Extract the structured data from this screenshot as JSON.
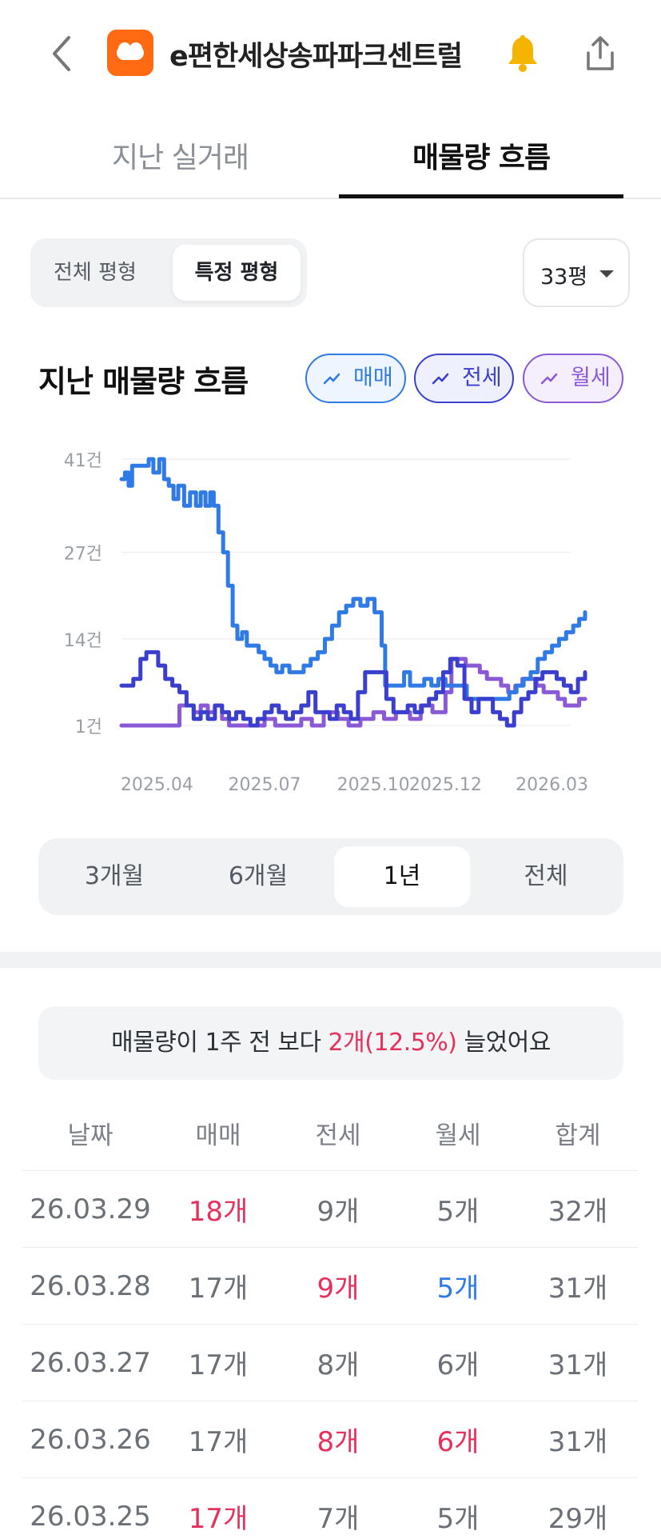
{
  "header": {
    "title": "e편한세상송파파크센트럴",
    "colors": {
      "brand": "#ff6a13",
      "bell": "#f5b400"
    }
  },
  "tabs": [
    {
      "label": "지난 실거래",
      "active": false
    },
    {
      "label": "매물량 흐름",
      "active": true
    }
  ],
  "filter": {
    "options": [
      "전체 평형",
      "특정 평형"
    ],
    "selected": "특정 평형",
    "size_select": "33평"
  },
  "chart_section": {
    "title": "지난 매물량 흐름",
    "legend": [
      {
        "label": "매매",
        "color": "#2f7ae5"
      },
      {
        "label": "전세",
        "color": "#3b3fce"
      },
      {
        "label": "월세",
        "color": "#8a5ad6"
      }
    ]
  },
  "chart_data": {
    "type": "line",
    "title": "",
    "xlabel": "",
    "ylabel": "",
    "y_ticks": [
      "41건",
      "27건",
      "14건",
      "1건"
    ],
    "y_tick_values": [
      41,
      27,
      14,
      1
    ],
    "ylim": [
      1,
      41
    ],
    "x_ticks": [
      "2025.04",
      "2025.07",
      "2025.10",
      "2025.12",
      "2026.03"
    ],
    "x_tick_values": [
      "2025-04-01",
      "2025-07-01",
      "2025-10-01",
      "2025-12-01",
      "2026-03-01"
    ],
    "xlim": [
      "2025-03-02",
      "2026-03-29"
    ],
    "grid": true,
    "legend": "top-right",
    "series": [
      {
        "name": "매매",
        "color": "#2f7ae5",
        "points": [
          [
            "2025-03-02",
            38
          ],
          [
            "2025-03-05",
            39
          ],
          [
            "2025-03-08",
            37
          ],
          [
            "2025-03-11",
            40
          ],
          [
            "2025-03-15",
            40
          ],
          [
            "2025-03-20",
            40
          ],
          [
            "2025-03-25",
            41
          ],
          [
            "2025-03-29",
            39
          ],
          [
            "2025-04-03",
            41
          ],
          [
            "2025-04-07",
            38
          ],
          [
            "2025-04-11",
            37
          ],
          [
            "2025-04-15",
            35
          ],
          [
            "2025-04-19",
            37
          ],
          [
            "2025-04-24",
            34
          ],
          [
            "2025-04-29",
            36
          ],
          [
            "2025-05-04",
            34
          ],
          [
            "2025-05-08",
            36
          ],
          [
            "2025-05-12",
            34
          ],
          [
            "2025-05-16",
            36
          ],
          [
            "2025-05-19",
            34
          ],
          [
            "2025-05-23",
            30
          ],
          [
            "2025-05-27",
            27
          ],
          [
            "2025-05-31",
            22
          ],
          [
            "2025-06-04",
            16
          ],
          [
            "2025-06-08",
            14
          ],
          [
            "2025-06-12",
            15
          ],
          [
            "2025-06-16",
            13
          ],
          [
            "2025-06-21",
            13
          ],
          [
            "2025-06-26",
            12
          ],
          [
            "2025-07-01",
            11
          ],
          [
            "2025-07-06",
            10
          ],
          [
            "2025-07-11",
            9
          ],
          [
            "2025-07-16",
            10
          ],
          [
            "2025-07-22",
            9
          ],
          [
            "2025-07-28",
            9
          ],
          [
            "2025-08-03",
            10
          ],
          [
            "2025-08-09",
            11
          ],
          [
            "2025-08-15",
            12
          ],
          [
            "2025-08-21",
            14
          ],
          [
            "2025-08-27",
            16
          ],
          [
            "2025-09-02",
            18
          ],
          [
            "2025-09-08",
            19
          ],
          [
            "2025-09-14",
            20
          ],
          [
            "2025-09-20",
            19
          ],
          [
            "2025-09-26",
            20
          ],
          [
            "2025-10-02",
            18
          ],
          [
            "2025-10-08",
            13
          ],
          [
            "2025-10-11",
            7
          ],
          [
            "2025-10-17",
            7
          ],
          [
            "2025-10-23",
            7
          ],
          [
            "2025-10-27",
            9
          ],
          [
            "2025-11-01",
            7
          ],
          [
            "2025-11-07",
            7
          ],
          [
            "2025-11-13",
            8
          ],
          [
            "2025-11-19",
            7
          ],
          [
            "2025-11-25",
            8
          ],
          [
            "2025-12-01",
            7
          ],
          [
            "2025-12-07",
            7
          ],
          [
            "2025-12-13",
            7
          ],
          [
            "2025-12-19",
            5
          ],
          [
            "2025-12-25",
            5
          ],
          [
            "2025-12-31",
            5
          ],
          [
            "2026-01-06",
            5
          ],
          [
            "2026-01-12",
            5
          ],
          [
            "2026-01-18",
            5
          ],
          [
            "2026-01-24",
            6
          ],
          [
            "2026-01-30",
            7
          ],
          [
            "2026-02-05",
            8
          ],
          [
            "2026-02-11",
            9
          ],
          [
            "2026-02-17",
            11
          ],
          [
            "2026-02-23",
            12
          ],
          [
            "2026-03-01",
            13
          ],
          [
            "2026-03-07",
            14
          ],
          [
            "2026-03-13",
            15
          ],
          [
            "2026-03-19",
            16
          ],
          [
            "2026-03-24",
            17
          ],
          [
            "2026-03-29",
            18
          ]
        ]
      },
      {
        "name": "전세",
        "color": "#3b3fce",
        "points": [
          [
            "2025-03-02",
            7
          ],
          [
            "2025-03-07",
            7
          ],
          [
            "2025-03-12",
            8
          ],
          [
            "2025-03-18",
            11
          ],
          [
            "2025-03-23",
            12
          ],
          [
            "2025-03-29",
            12
          ],
          [
            "2025-04-02",
            10
          ],
          [
            "2025-04-08",
            8
          ],
          [
            "2025-04-14",
            7
          ],
          [
            "2025-04-20",
            6
          ],
          [
            "2025-04-26",
            4
          ],
          [
            "2025-05-02",
            2
          ],
          [
            "2025-05-08",
            3
          ],
          [
            "2025-05-14",
            2
          ],
          [
            "2025-05-20",
            4
          ],
          [
            "2025-05-26",
            3
          ],
          [
            "2025-06-01",
            2
          ],
          [
            "2025-06-07",
            3
          ],
          [
            "2025-06-13",
            2
          ],
          [
            "2025-06-19",
            1
          ],
          [
            "2025-06-25",
            2
          ],
          [
            "2025-07-01",
            3
          ],
          [
            "2025-07-07",
            4
          ],
          [
            "2025-07-13",
            3
          ],
          [
            "2025-07-19",
            2
          ],
          [
            "2025-07-25",
            3
          ],
          [
            "2025-08-01",
            4
          ],
          [
            "2025-08-07",
            6
          ],
          [
            "2025-08-13",
            3
          ],
          [
            "2025-08-19",
            3
          ],
          [
            "2025-08-25",
            2
          ],
          [
            "2025-08-31",
            4
          ],
          [
            "2025-09-06",
            3
          ],
          [
            "2025-09-12",
            2
          ],
          [
            "2025-09-18",
            6
          ],
          [
            "2025-09-24",
            9
          ],
          [
            "2025-09-30",
            9
          ],
          [
            "2025-10-06",
            9
          ],
          [
            "2025-10-12",
            5
          ],
          [
            "2025-10-18",
            3
          ],
          [
            "2025-10-24",
            3
          ],
          [
            "2025-10-30",
            4
          ],
          [
            "2025-11-05",
            3
          ],
          [
            "2025-11-11",
            4
          ],
          [
            "2025-11-17",
            5
          ],
          [
            "2025-11-23",
            6
          ],
          [
            "2025-11-29",
            9
          ],
          [
            "2025-12-05",
            11
          ],
          [
            "2025-12-11",
            10
          ],
          [
            "2025-12-17",
            5
          ],
          [
            "2025-12-23",
            3
          ],
          [
            "2025-12-29",
            5
          ],
          [
            "2026-01-04",
            5
          ],
          [
            "2026-01-10",
            3
          ],
          [
            "2026-01-16",
            2
          ],
          [
            "2026-01-22",
            1
          ],
          [
            "2026-01-28",
            3
          ],
          [
            "2026-02-03",
            5
          ],
          [
            "2026-02-09",
            6
          ],
          [
            "2026-02-15",
            8
          ],
          [
            "2026-02-21",
            9
          ],
          [
            "2026-02-27",
            9
          ],
          [
            "2026-03-05",
            8
          ],
          [
            "2026-03-11",
            7
          ],
          [
            "2026-03-17",
            6
          ],
          [
            "2026-03-23",
            8
          ],
          [
            "2026-03-29",
            9
          ]
        ]
      },
      {
        "name": "월세",
        "color": "#8a5ad6",
        "points": [
          [
            "2025-03-02",
            1
          ],
          [
            "2025-03-20",
            1
          ],
          [
            "2025-04-08",
            1
          ],
          [
            "2025-04-18",
            1
          ],
          [
            "2025-04-20",
            4
          ],
          [
            "2025-04-26",
            4
          ],
          [
            "2025-05-02",
            3
          ],
          [
            "2025-05-08",
            4
          ],
          [
            "2025-05-14",
            3
          ],
          [
            "2025-05-20",
            4
          ],
          [
            "2025-05-26",
            2
          ],
          [
            "2025-06-01",
            1
          ],
          [
            "2025-06-10",
            1
          ],
          [
            "2025-06-20",
            1
          ],
          [
            "2025-07-01",
            2
          ],
          [
            "2025-07-10",
            1
          ],
          [
            "2025-07-20",
            1
          ],
          [
            "2025-08-01",
            2
          ],
          [
            "2025-08-10",
            1
          ],
          [
            "2025-08-20",
            3
          ],
          [
            "2025-09-01",
            2
          ],
          [
            "2025-09-10",
            1
          ],
          [
            "2025-09-20",
            2
          ],
          [
            "2025-10-01",
            3
          ],
          [
            "2025-10-10",
            2
          ],
          [
            "2025-10-20",
            3
          ],
          [
            "2025-11-01",
            2
          ],
          [
            "2025-11-10",
            4
          ],
          [
            "2025-11-20",
            3
          ],
          [
            "2025-12-01",
            6
          ],
          [
            "2025-12-06",
            11
          ],
          [
            "2025-12-12",
            11
          ],
          [
            "2025-12-18",
            10
          ],
          [
            "2025-12-24",
            10
          ],
          [
            "2025-12-30",
            9
          ],
          [
            "2026-01-05",
            8
          ],
          [
            "2026-01-11",
            8
          ],
          [
            "2026-01-17",
            7
          ],
          [
            "2026-01-23",
            6
          ],
          [
            "2026-01-29",
            7
          ],
          [
            "2026-02-04",
            8
          ],
          [
            "2026-02-10",
            8
          ],
          [
            "2026-02-16",
            7
          ],
          [
            "2026-02-22",
            6
          ],
          [
            "2026-02-28",
            6
          ],
          [
            "2026-03-06",
            5
          ],
          [
            "2026-03-12",
            4
          ],
          [
            "2026-03-18",
            4
          ],
          [
            "2026-03-24",
            5
          ],
          [
            "2026-03-29",
            5
          ]
        ]
      }
    ]
  },
  "range": {
    "options": [
      "3개월",
      "6개월",
      "1년",
      "전체"
    ],
    "selected": "1년"
  },
  "notice": {
    "prefix": "매물량이 1주 전 보다 ",
    "highlight": "2개(12.5%)",
    "suffix": " 늘었어요",
    "highlight_color": "#e5315b"
  },
  "table": {
    "headers": [
      "날짜",
      "매매",
      "전세",
      "월세",
      "합계"
    ],
    "rows": [
      {
        "date": "26.03.29",
        "sale": "18개",
        "jeonse": "9개",
        "wolse": "5개",
        "total": "32개",
        "sale_trend": "up",
        "jeonse_trend": "",
        "wolse_trend": ""
      },
      {
        "date": "26.03.28",
        "sale": "17개",
        "jeonse": "9개",
        "wolse": "5개",
        "total": "31개",
        "sale_trend": "",
        "jeonse_trend": "up",
        "wolse_trend": "down"
      },
      {
        "date": "26.03.27",
        "sale": "17개",
        "jeonse": "8개",
        "wolse": "6개",
        "total": "31개",
        "sale_trend": "",
        "jeonse_trend": "",
        "wolse_trend": ""
      },
      {
        "date": "26.03.26",
        "sale": "17개",
        "jeonse": "8개",
        "wolse": "6개",
        "total": "31개",
        "sale_trend": "",
        "jeonse_trend": "up",
        "wolse_trend": "up"
      },
      {
        "date": "26.03.25",
        "sale": "17개",
        "jeonse": "7개",
        "wolse": "5개",
        "total": "29개",
        "sale_trend": "up",
        "jeonse_trend": "",
        "wolse_trend": ""
      }
    ]
  }
}
